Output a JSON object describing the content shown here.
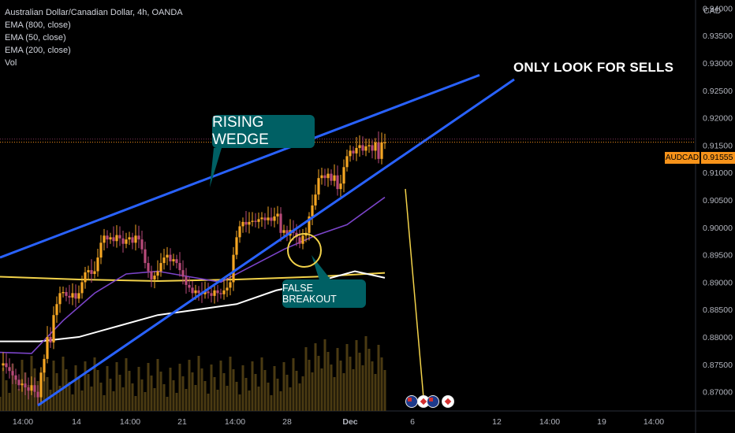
{
  "legend": {
    "symbol_line": "Australian Dollar/Canadian Dollar, 4h, OANDA",
    "ema800": "EMA (800, close)",
    "ema50": "EMA (50, close)",
    "ema200": "EMA (200, close)",
    "vol": "Vol"
  },
  "axis": {
    "currency": "CAD"
  },
  "price_badge": {
    "symbol": "AUDCAD",
    "price": "0.91555"
  },
  "annotations": {
    "rising_wedge": "RISING WEDGE",
    "false_breakout": "FALSE BREAKOUT",
    "only_sells": "ONLY LOOK FOR SELLS"
  },
  "colors": {
    "bull": "#f5a623",
    "bear": "#b84a7a",
    "wedge": "#2962ff",
    "ema800": "#f2d24a",
    "ema50": "#7b44c9",
    "ema200": "#ffffff",
    "arrow": "#f2d24a",
    "callout": "#006064",
    "volume": "#4a3a12"
  },
  "chart_data": {
    "type": "candlestick",
    "symbol": "AUDCAD",
    "timeframe": "4h",
    "last_price": 0.91555,
    "y_ticks": [
      "0.94000",
      "0.93500",
      "0.93000",
      "0.92500",
      "0.92000",
      "0.91500",
      "0.91000",
      "0.90500",
      "0.90000",
      "0.89500",
      "0.89000",
      "0.88500",
      "0.88000",
      "0.87500",
      "0.87000"
    ],
    "x_ticks": [
      "14:00",
      "14",
      "14:00",
      "21",
      "14:00",
      "28",
      "Dec",
      "6",
      "12",
      "14:00",
      "19",
      "14:00"
    ],
    "ylim": [
      0.8665,
      0.9415
    ],
    "close_path": [
      [
        0,
        0.8748
      ],
      [
        4,
        0.8752
      ],
      [
        8,
        0.8745
      ],
      [
        12,
        0.8738
      ],
      [
        16,
        0.873
      ],
      [
        20,
        0.8722
      ],
      [
        24,
        0.8712
      ],
      [
        28,
        0.8715
      ],
      [
        32,
        0.8708
      ],
      [
        36,
        0.8702
      ],
      [
        40,
        0.8712
      ],
      [
        44,
        0.87
      ],
      [
        48,
        0.869
      ],
      [
        52,
        0.8735
      ],
      [
        56,
        0.876
      ],
      [
        60,
        0.88
      ],
      [
        64,
        0.879
      ],
      [
        68,
        0.884
      ],
      [
        72,
        0.886
      ],
      [
        76,
        0.888
      ],
      [
        80,
        0.8882
      ],
      [
        84,
        0.8875
      ],
      [
        88,
        0.8872
      ],
      [
        92,
        0.888
      ],
      [
        96,
        0.887
      ],
      [
        100,
        0.888
      ],
      [
        104,
        0.89
      ],
      [
        108,
        0.8918
      ],
      [
        112,
        0.8922
      ],
      [
        116,
        0.8915
      ],
      [
        120,
        0.892
      ],
      [
        124,
        0.8945
      ],
      [
        128,
        0.8972
      ],
      [
        132,
        0.8985
      ],
      [
        136,
        0.8978
      ],
      [
        140,
        0.8982
      ],
      [
        144,
        0.8975
      ],
      [
        148,
        0.8986
      ],
      [
        152,
        0.898
      ],
      [
        156,
        0.897
      ],
      [
        160,
        0.8978
      ],
      [
        164,
        0.8982
      ],
      [
        168,
        0.8972
      ],
      [
        172,
        0.8985
      ],
      [
        176,
        0.8978
      ],
      [
        180,
        0.896
      ],
      [
        184,
        0.8935
      ],
      [
        188,
        0.892
      ],
      [
        192,
        0.8905
      ],
      [
        196,
        0.8912
      ],
      [
        200,
        0.892
      ],
      [
        204,
        0.8935
      ],
      [
        208,
        0.8945
      ],
      [
        212,
        0.895
      ],
      [
        216,
        0.8938
      ],
      [
        220,
        0.8942
      ],
      [
        224,
        0.8935
      ],
      [
        228,
        0.8922
      ],
      [
        232,
        0.891
      ],
      [
        236,
        0.8895
      ],
      [
        240,
        0.889
      ],
      [
        244,
        0.888
      ],
      [
        248,
        0.8885
      ],
      [
        252,
        0.888
      ],
      [
        256,
        0.8878
      ],
      [
        260,
        0.8883
      ],
      [
        264,
        0.888
      ],
      [
        268,
        0.8875
      ],
      [
        272,
        0.8885
      ],
      [
        276,
        0.888
      ],
      [
        280,
        0.8878
      ],
      [
        284,
        0.8885
      ],
      [
        288,
        0.889
      ],
      [
        292,
        0.89
      ],
      [
        296,
        0.895
      ],
      [
        300,
        0.8982
      ],
      [
        304,
        0.9002
      ],
      [
        308,
        0.901
      ],
      [
        312,
        0.9005
      ],
      [
        316,
        0.901
      ],
      [
        320,
        0.9012
      ],
      [
        324,
        0.901
      ],
      [
        328,
        0.9015
      ],
      [
        332,
        0.9018
      ],
      [
        336,
        0.9013
      ],
      [
        340,
        0.9018
      ],
      [
        344,
        0.9012
      ],
      [
        348,
        0.902
      ],
      [
        352,
        0.9025
      ],
      [
        356,
        0.899
      ],
      [
        360,
        0.8995
      ],
      [
        364,
        0.8985
      ],
      [
        368,
        0.8995
      ],
      [
        372,
        0.899
      ],
      [
        376,
        0.8982
      ],
      [
        380,
        0.897
      ],
      [
        384,
        0.8985
      ],
      [
        388,
        0.899
      ],
      [
        392,
        0.902
      ],
      [
        396,
        0.904
      ],
      [
        400,
        0.906
      ],
      [
        404,
        0.909
      ],
      [
        408,
        0.9095
      ],
      [
        412,
        0.909
      ],
      [
        416,
        0.9098
      ],
      [
        420,
        0.9085
      ],
      [
        424,
        0.9095
      ],
      [
        428,
        0.907
      ],
      [
        432,
        0.908
      ],
      [
        436,
        0.911
      ],
      [
        440,
        0.913
      ],
      [
        444,
        0.914
      ],
      [
        448,
        0.9135
      ],
      [
        452,
        0.9145
      ],
      [
        456,
        0.915
      ],
      [
        460,
        0.914
      ],
      [
        464,
        0.9148
      ],
      [
        468,
        0.915
      ],
      [
        472,
        0.914
      ],
      [
        476,
        0.9155
      ],
      [
        480,
        0.9125
      ],
      [
        484,
        0.9155
      ],
      [
        488,
        0.9155
      ]
    ],
    "ema800": [
      [
        0,
        0.891
      ],
      [
        100,
        0.8905
      ],
      [
        200,
        0.8902
      ],
      [
        300,
        0.8905
      ],
      [
        400,
        0.891
      ],
      [
        488,
        0.8917
      ]
    ],
    "ema200": [
      [
        0,
        0.8792
      ],
      [
        50,
        0.8792
      ],
      [
        100,
        0.88
      ],
      [
        150,
        0.882
      ],
      [
        200,
        0.884
      ],
      [
        250,
        0.885
      ],
      [
        300,
        0.886
      ],
      [
        350,
        0.8885
      ],
      [
        400,
        0.89
      ],
      [
        450,
        0.892
      ],
      [
        488,
        0.8908
      ]
    ],
    "ema50": [
      [
        0,
        0.8772
      ],
      [
        40,
        0.877
      ],
      [
        80,
        0.883
      ],
      [
        120,
        0.888
      ],
      [
        160,
        0.8915
      ],
      [
        200,
        0.892
      ],
      [
        240,
        0.891
      ],
      [
        280,
        0.89
      ],
      [
        320,
        0.893
      ],
      [
        360,
        0.896
      ],
      [
        400,
        0.8985
      ],
      [
        440,
        0.9005
      ],
      [
        488,
        0.9055
      ]
    ],
    "wedge_upper": [
      [
        0,
        0.8945
      ],
      [
        608,
        0.9278
      ]
    ],
    "wedge_lower": [
      [
        48,
        0.8675
      ],
      [
        652,
        0.927
      ]
    ]
  }
}
